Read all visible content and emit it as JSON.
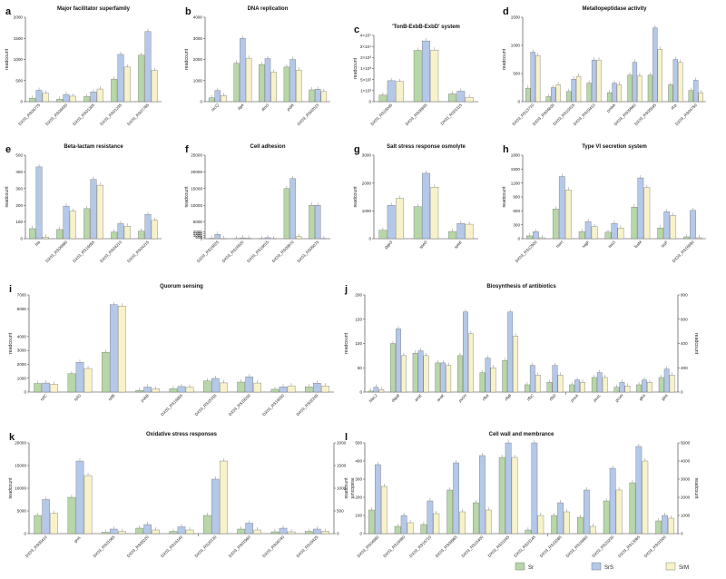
{
  "legend": [
    {
      "name": "Sr",
      "color": "#b7d7a8"
    },
    {
      "name": "SrS",
      "color": "#b4c8e9"
    },
    {
      "name": "SrM",
      "color": "#f7f2c9"
    }
  ],
  "chart_data": [
    {
      "type": "bar",
      "letter": "a",
      "title": "Major facilitator superfamily",
      "ylabel": "readcount",
      "ylim": [
        0,
        2000
      ],
      "yticks": [
        0,
        500,
        1000,
        1500,
        2000
      ],
      "categories": [
        "DX03_RS06775",
        "DX03_RS08430",
        "DX03_RS01305",
        "DX03_RS01235",
        "DX03_RS07785"
      ],
      "italic": false,
      "series": [
        {
          "name": "Sr",
          "values": [
            80,
            60,
            120,
            530,
            1100
          ]
        },
        {
          "name": "SrS",
          "values": [
            270,
            170,
            230,
            1120,
            1660
          ]
        },
        {
          "name": "SrM",
          "values": [
            200,
            130,
            300,
            820,
            740
          ]
        }
      ]
    },
    {
      "type": "bar",
      "letter": "b",
      "title": "DNA replication",
      "ylim": [
        0,
        4000
      ],
      "yticks": [
        0,
        1000,
        2000,
        3000,
        4000
      ],
      "categories": [
        "recQ",
        "ligA",
        "dinG",
        "polA",
        "DX03_RS02015"
      ],
      "italic": true,
      "series": [
        {
          "name": "Sr",
          "values": [
            180,
            1820,
            1760,
            1640,
            560
          ]
        },
        {
          "name": "SrS",
          "values": [
            530,
            3000,
            2040,
            2000,
            590
          ]
        },
        {
          "name": "SrM",
          "values": [
            290,
            2060,
            1400,
            1500,
            480
          ]
        }
      ]
    },
    {
      "type": "bar",
      "letter": "c",
      "title": "'TonB-ExbB-ExbD' system",
      "ylim": [
        0,
        40000
      ],
      "yticks": [
        0,
        100,
        500,
        1000,
        2000,
        30000,
        40000
      ],
      "ytick_labels": [
        "0",
        "1×10²",
        "5×10²",
        "1×10³",
        "2×10³",
        "3×10⁴",
        "4×10⁴"
      ],
      "categories": [
        "DX03_RS19045",
        "DX03_RS06845",
        "DX03_RS01115"
      ],
      "italic": false,
      "series": [
        {
          "name": "Sr",
          "values": [
            60,
            20000,
            70
          ]
        },
        {
          "name": "SrS",
          "values": [
            460,
            35000,
            95
          ]
        },
        {
          "name": "SrM",
          "values": [
            430,
            20500,
            40
          ]
        }
      ]
    },
    {
      "type": "bar",
      "letter": "d",
      "title": "Metallopeptidase activity",
      "ylim": [
        0,
        1500
      ],
      "yticks": [
        0,
        500,
        1000,
        1500
      ],
      "categories": [
        "DX03_RS13710",
        "DX03_RS04605",
        "DX03_RS10415",
        "DX03_RS19410",
        "pmbA",
        "DX03_RS09960",
        "DX03_RS05545",
        "dcp",
        "DX03_RS04750"
      ],
      "italic": false,
      "series": [
        {
          "name": "Sr",
          "values": [
            240,
            90,
            180,
            330,
            160,
            470,
            470,
            300,
            200
          ]
        },
        {
          "name": "SrS",
          "values": [
            880,
            250,
            400,
            740,
            330,
            700,
            1310,
            750,
            380
          ]
        },
        {
          "name": "SrM",
          "values": [
            820,
            300,
            450,
            740,
            300,
            460,
            930,
            700,
            160
          ]
        }
      ]
    },
    {
      "type": "bar",
      "letter": "e",
      "title": "Beta-lactam resistance",
      "ylim": [
        0,
        500
      ],
      "yticks": [
        0,
        100,
        200,
        300,
        400,
        500
      ],
      "categories": [
        "bla",
        "DX03_RS06990",
        "DX03_RS16655",
        "DX03_RS04210",
        "DX03_RS04215"
      ],
      "italic": false,
      "series": [
        {
          "name": "Sr",
          "values": [
            60,
            55,
            180,
            40,
            45
          ]
        },
        {
          "name": "SrS",
          "values": [
            430,
            195,
            355,
            90,
            145
          ]
        },
        {
          "name": "SrM",
          "values": [
            10,
            165,
            320,
            75,
            110
          ]
        }
      ]
    },
    {
      "type": "bar",
      "letter": "f",
      "title": "Cell adhesion",
      "ylim": [
        0,
        25000
      ],
      "yticks": [
        0,
        500,
        1000,
        1500,
        2000,
        5000,
        10000,
        15000,
        20000,
        25000
      ],
      "categories": [
        "DX03_RS16625",
        "DX03_RS16620",
        "DX03_RS16615",
        "DX03_RS09970",
        "DX03_RS09075"
      ],
      "italic": false,
      "series": [
        {
          "name": "Sr",
          "values": [
            50,
            40,
            40,
            15000,
            10000
          ]
        },
        {
          "name": "SrS",
          "values": [
            1300,
            250,
            300,
            18000,
            10000
          ]
        },
        {
          "name": "SrM",
          "values": [
            5,
            120,
            5,
            600,
            10
          ]
        }
      ]
    },
    {
      "type": "bar",
      "letter": "g",
      "title": "Salt stress response osmolyte",
      "ylim": [
        0,
        3000
      ],
      "yticks": [
        0,
        1000,
        2000,
        3000
      ],
      "categories": [
        "ggpS",
        "speD",
        "speE"
      ],
      "italic": true,
      "series": [
        {
          "name": "Sr",
          "values": [
            300,
            1150,
            260
          ]
        },
        {
          "name": "SrS",
          "values": [
            1200,
            2350,
            550
          ]
        },
        {
          "name": "SrM",
          "values": [
            1450,
            1850,
            520
          ]
        }
      ]
    },
    {
      "type": "bar",
      "letter": "h",
      "title": "Type VI secretion system",
      "ylim": [
        0,
        1800
      ],
      "yticks": [
        0,
        300,
        600,
        900,
        1200,
        1500,
        1800
      ],
      "categories": [
        "DX03_RS12900",
        "tssH",
        "tagF",
        "tssG",
        "tssM",
        "tssF",
        "DX03_RS16690"
      ],
      "italic": false,
      "series": [
        {
          "name": "Sr",
          "values": [
            60,
            640,
            150,
            140,
            680,
            230,
            40
          ]
        },
        {
          "name": "SrS",
          "values": [
            150,
            1340,
            370,
            330,
            1310,
            580,
            610
          ]
        },
        {
          "name": "SrM",
          "values": [
            20,
            1050,
            260,
            230,
            1100,
            500,
            20
          ]
        }
      ]
    },
    {
      "type": "bar",
      "letter": "i",
      "title": "Quorum sensing",
      "ylim": [
        0,
        7000
      ],
      "yticks": [
        0,
        1000,
        2000,
        3000,
        4000,
        6000,
        7000
      ],
      "categories": [
        "rpfC",
        "rpfG",
        "rpfB",
        "pobB",
        "DX03_RS16855",
        "DX03_RS15155",
        "DX03_RS19200",
        "DX03_RS16030",
        "DX03_RS02245"
      ],
      "italic": false,
      "series": [
        {
          "name": "Sr",
          "values": [
            620,
            1320,
            2870,
            120,
            240,
            800,
            720,
            200,
            380
          ]
        },
        {
          "name": "SrS",
          "values": [
            650,
            2150,
            6300,
            360,
            400,
            980,
            1100,
            380,
            640
          ]
        },
        {
          "name": "SrM",
          "values": [
            560,
            1700,
            6200,
            230,
            350,
            660,
            650,
            450,
            440
          ]
        }
      ]
    },
    {
      "type": "bar",
      "letter": "j",
      "title": "Biosynthesis of antibiotics",
      "ylim": [
        0,
        200
      ],
      "yticks": [
        0,
        50,
        100,
        150,
        200
      ],
      "y2lim": [
        0,
        800
      ],
      "y2ticks": [
        0,
        200,
        400,
        600,
        800
      ],
      "categories": [
        "blaL2",
        "dapB",
        "aroE",
        "aroK",
        "pucH",
        "rfbA",
        "rfbB",
        "rfbC",
        "rfbD",
        "pncA",
        "pucL",
        "gcvH",
        "glrA",
        "glrA"
      ],
      "italic": true,
      "series": [
        {
          "name": "Sr",
          "values": [
            2,
            100,
            80,
            60,
            75,
            40,
            65,
            15,
            20,
            60,
            120,
            40,
            60,
            120
          ]
        },
        {
          "name": "SrS",
          "values": [
            10,
            130,
            85,
            60,
            165,
            70,
            165,
            55,
            55,
            100,
            160,
            80,
            100,
            190
          ]
        },
        {
          "name": "SrM",
          "values": [
            5,
            75,
            75,
            55,
            120,
            50,
            115,
            35,
            35,
            80,
            120,
            50,
            80,
            140
          ]
        }
      ]
    },
    {
      "type": "bar",
      "letter": "k",
      "title": "Oxidative stress responses",
      "ylim": [
        0,
        20000
      ],
      "yticks": [
        0,
        5000,
        10000,
        15000,
        20000
      ],
      "y2lim": [
        0,
        2000
      ],
      "y2ticks": [
        0,
        500,
        1000,
        1500,
        2000
      ],
      "categories": [
        "DX03_RS05410",
        "groL",
        "DX03_RS01065",
        "DX03_RS08220",
        "DX03_RS16140",
        "DX03_RS20130",
        "DX03_RS01960",
        "DX03_RS08740",
        "DX03_RS19425"
      ],
      "italic": false,
      "series": [
        {
          "name": "Sr",
          "values": [
            4000,
            8000,
            300,
            1200,
            500,
            400,
            100,
            40,
            50
          ]
        },
        {
          "name": "SrS",
          "values": [
            7500,
            16000,
            1000,
            2000,
            1500,
            1200,
            230,
            120,
            100
          ]
        },
        {
          "name": "SrM",
          "values": [
            4500,
            12800,
            500,
            800,
            800,
            1600,
            80,
            40,
            50
          ]
        }
      ]
    },
    {
      "type": "bar",
      "letter": "l",
      "title": "Cell wall and membrance",
      "ylim": [
        0,
        500
      ],
      "yticks": [
        0,
        100,
        200,
        300,
        400,
        500
      ],
      "y2lim": [
        0,
        5000
      ],
      "y2ticks": [
        0,
        1000,
        2000,
        3000,
        4000,
        5000
      ],
      "categories": [
        "DX03_RS04680",
        "DX03_RS19480",
        "DX03_RS16710",
        "DX03_RS09965",
        "DX03_RS15400",
        "DX03_RS01165",
        "DX03_RS01145",
        "DX03_RS19385",
        "DX03_RS16660",
        "DX03_RS20230",
        "DX03_RS13065",
        "DX03_RS01500"
      ],
      "italic": false,
      "series": [
        {
          "name": "Sr",
          "values": [
            130,
            40,
            50,
            240,
            170,
            420,
            20,
            1000,
            900,
            1800,
            2800,
            700
          ]
        },
        {
          "name": "SrS",
          "values": [
            380,
            100,
            180,
            390,
            430,
            540,
            550,
            1700,
            2400,
            3600,
            4800,
            1000
          ]
        },
        {
          "name": "SrM",
          "values": [
            260,
            60,
            110,
            120,
            130,
            420,
            100,
            1200,
            400,
            2400,
            4000,
            850
          ]
        }
      ]
    }
  ]
}
